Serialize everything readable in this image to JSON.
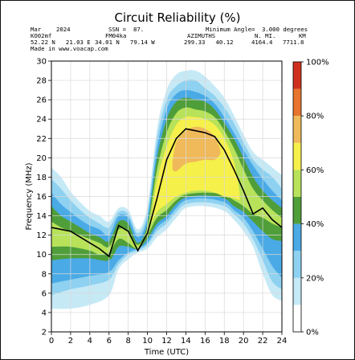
{
  "chart_data": {
    "type": "heatmap",
    "title": "Circuit Reliability (%)",
    "header": {
      "month": "Mar",
      "year": "2024",
      "ssn_label": "SSN =",
      "ssn": "87.",
      "min_angle_label": "Minimum Angle=",
      "min_angle": "3.000 degrees",
      "tx_call": "KO02mf",
      "rx_call": "FM04ka",
      "azimuths_label": "AZIMUTHS",
      "nmi_label": "N. MI.",
      "km_label": "KM",
      "tx_coords": "52.22 N   21.03 E",
      "rx_coords": "34.01 N   79.14 W",
      "azimuths": "299.33   40.12",
      "nmi": "4164.4",
      "km": "7711.8",
      "made_in": "Made in www.voacap.com"
    },
    "xlabel": "Time (UTC)",
    "ylabel": "Frequency (MHz)",
    "xlim": [
      0,
      24
    ],
    "ylim": [
      2,
      30
    ],
    "xticks": [
      0,
      2,
      4,
      6,
      8,
      10,
      12,
      14,
      16,
      18,
      20,
      22,
      24
    ],
    "yticks": [
      2,
      4,
      6,
      8,
      10,
      12,
      14,
      16,
      18,
      20,
      22,
      24,
      26,
      28,
      30
    ],
    "grid": true,
    "colorbar": {
      "ticks": [
        "0%",
        "20%",
        "40%",
        "60%",
        "80%",
        "100%"
      ],
      "levels": [
        {
          "from": 0,
          "to": 10,
          "color": "#ffffff"
        },
        {
          "from": 10,
          "to": 20,
          "color": "#c6e9f6"
        },
        {
          "from": 20,
          "to": 30,
          "color": "#8ed1f0"
        },
        {
          "from": 30,
          "to": 40,
          "color": "#4aaae6"
        },
        {
          "from": 40,
          "to": 50,
          "color": "#4f9e3a"
        },
        {
          "from": 50,
          "to": 60,
          "color": "#b7e25a"
        },
        {
          "from": 60,
          "to": 70,
          "color": "#f6f04a"
        },
        {
          "from": 70,
          "to": 80,
          "color": "#f0b95a"
        },
        {
          "from": 80,
          "to": 90,
          "color": "#e8742e"
        },
        {
          "from": 90,
          "to": 100,
          "color": "#d0301e"
        }
      ]
    },
    "contours": [
      {
        "level": 10,
        "color": "#c6e9f6",
        "low": [
          [
            0,
            4.4
          ],
          [
            2,
            4.4
          ],
          [
            4,
            4.8
          ],
          [
            6,
            5.8
          ],
          [
            7,
            8.5
          ],
          [
            8,
            9.5
          ],
          [
            9,
            10.2
          ],
          [
            10,
            10.6
          ],
          [
            11,
            11.8
          ],
          [
            12,
            12.6
          ],
          [
            13,
            13.8
          ],
          [
            14,
            14.8
          ],
          [
            16,
            15
          ],
          [
            18,
            14.5
          ],
          [
            19,
            13.6
          ],
          [
            20,
            12.4
          ],
          [
            21,
            10.8
          ],
          [
            22,
            8
          ],
          [
            23,
            5.8
          ],
          [
            24,
            5.2
          ]
        ],
        "high": [
          [
            0,
            19
          ],
          [
            1,
            18
          ],
          [
            2,
            16.5
          ],
          [
            3,
            15.4
          ],
          [
            4,
            14.5
          ],
          [
            5,
            14
          ],
          [
            6,
            13.4
          ],
          [
            7,
            14.8
          ],
          [
            8,
            14.6
          ],
          [
            9,
            12.6
          ],
          [
            10,
            15
          ],
          [
            11,
            23
          ],
          [
            12,
            27
          ],
          [
            13,
            28.6
          ],
          [
            14,
            29
          ],
          [
            15,
            29
          ],
          [
            16,
            28.4
          ],
          [
            17,
            27.4
          ],
          [
            18,
            26.2
          ],
          [
            19,
            24.4
          ],
          [
            20,
            22.4
          ],
          [
            21,
            20.6
          ],
          [
            22,
            19.8
          ],
          [
            23,
            19
          ],
          [
            24,
            18.2
          ]
        ]
      },
      {
        "level": 20,
        "color": "#8ed1f0",
        "low": [
          [
            0,
            5.8
          ],
          [
            2,
            6.4
          ],
          [
            4,
            6.8
          ],
          [
            6,
            7.4
          ],
          [
            7,
            9
          ],
          [
            8,
            10
          ],
          [
            9,
            10.4
          ],
          [
            10,
            11
          ],
          [
            11,
            12.4
          ],
          [
            12,
            13.2
          ],
          [
            13,
            14.4
          ],
          [
            14,
            15.2
          ],
          [
            16,
            15.4
          ],
          [
            18,
            15
          ],
          [
            19,
            14.2
          ],
          [
            20,
            13.2
          ],
          [
            21,
            11.6
          ],
          [
            22,
            9.4
          ],
          [
            23,
            7.2
          ],
          [
            24,
            6.4
          ]
        ],
        "high": [
          [
            0,
            17.8
          ],
          [
            1,
            16.8
          ],
          [
            2,
            15.6
          ],
          [
            3,
            14.6
          ],
          [
            4,
            13.8
          ],
          [
            5,
            13.2
          ],
          [
            6,
            12.8
          ],
          [
            7,
            14.4
          ],
          [
            8,
            14.2
          ],
          [
            9,
            12.2
          ],
          [
            10,
            14.4
          ],
          [
            11,
            22
          ],
          [
            12,
            26
          ],
          [
            13,
            27.4
          ],
          [
            14,
            28
          ],
          [
            15,
            28
          ],
          [
            16,
            27.2
          ],
          [
            17,
            26.4
          ],
          [
            18,
            25.2
          ],
          [
            19,
            23.6
          ],
          [
            20,
            21.6
          ],
          [
            21,
            19.8
          ],
          [
            22,
            18.8
          ],
          [
            23,
            18
          ],
          [
            24,
            16.8
          ]
        ]
      },
      {
        "level": 30,
        "color": "#4aaae6",
        "low": [
          [
            0,
            7
          ],
          [
            2,
            7.4
          ],
          [
            4,
            7.8
          ],
          [
            6,
            8.2
          ],
          [
            7,
            9.4
          ],
          [
            8,
            10.2
          ],
          [
            9,
            10.6
          ],
          [
            10,
            11.2
          ],
          [
            11,
            12.8
          ],
          [
            12,
            13.6
          ],
          [
            13,
            14.8
          ],
          [
            14,
            15.6
          ],
          [
            16,
            15.8
          ],
          [
            18,
            15.4
          ],
          [
            19,
            14.6
          ],
          [
            20,
            13.8
          ],
          [
            21,
            12.4
          ],
          [
            22,
            10.6
          ],
          [
            23,
            8.8
          ],
          [
            24,
            7.6
          ]
        ],
        "high": [
          [
            0,
            16.4
          ],
          [
            1,
            15.2
          ],
          [
            2,
            14.4
          ],
          [
            3,
            13.6
          ],
          [
            4,
            13
          ],
          [
            5,
            12.6
          ],
          [
            6,
            12
          ],
          [
            7,
            14
          ],
          [
            8,
            13.8
          ],
          [
            9,
            11.8
          ],
          [
            10,
            13.8
          ],
          [
            11,
            21
          ],
          [
            12,
            25
          ],
          [
            13,
            26.6
          ],
          [
            14,
            27
          ],
          [
            15,
            26.8
          ],
          [
            16,
            26.4
          ],
          [
            17,
            25.6
          ],
          [
            18,
            24.2
          ],
          [
            19,
            22.6
          ],
          [
            20,
            20.8
          ],
          [
            21,
            19.2
          ],
          [
            22,
            17.8
          ],
          [
            23,
            16.6
          ],
          [
            24,
            15.6
          ]
        ]
      },
      {
        "level": 40,
        "color": "#4f9e3a",
        "low": [
          [
            0,
            9.4
          ],
          [
            2,
            9.6
          ],
          [
            4,
            9.6
          ],
          [
            6,
            9.4
          ],
          [
            7,
            10.8
          ],
          [
            8,
            10.8
          ],
          [
            9,
            10.6
          ],
          [
            10,
            11.6
          ],
          [
            11,
            13.2
          ],
          [
            12,
            14
          ],
          [
            13,
            15.2
          ],
          [
            14,
            15.9
          ],
          [
            16,
            16.1
          ],
          [
            18,
            15.8
          ],
          [
            19,
            15
          ],
          [
            20,
            14.4
          ],
          [
            21,
            13.4
          ],
          [
            22,
            12.4
          ],
          [
            23,
            11.6
          ],
          [
            24,
            11.4
          ]
        ],
        "high": [
          [
            0,
            15
          ],
          [
            1,
            14
          ],
          [
            2,
            13.4
          ],
          [
            3,
            12.8
          ],
          [
            4,
            12.2
          ],
          [
            5,
            11.8
          ],
          [
            6,
            11.4
          ],
          [
            7,
            13.4
          ],
          [
            8,
            13.2
          ],
          [
            9,
            11.2
          ],
          [
            10,
            13.2
          ],
          [
            11,
            20
          ],
          [
            12,
            24
          ],
          [
            13,
            25.8
          ],
          [
            14,
            26.2
          ],
          [
            15,
            26
          ],
          [
            16,
            25.8
          ],
          [
            17,
            25
          ],
          [
            18,
            23.6
          ],
          [
            19,
            22
          ],
          [
            20,
            20
          ],
          [
            21,
            18
          ],
          [
            22,
            16.6
          ],
          [
            23,
            15.6
          ],
          [
            24,
            14.8
          ]
        ]
      },
      {
        "level": 50,
        "color": "#b7e25a",
        "low": [
          [
            0,
            10.8
          ],
          [
            2,
            10.8
          ],
          [
            4,
            10.4
          ],
          [
            5,
            10
          ],
          [
            6,
            10.2
          ],
          [
            7,
            11.6
          ],
          [
            8,
            11.2
          ],
          [
            9,
            10.6
          ],
          [
            10,
            12
          ],
          [
            11,
            13.8
          ],
          [
            12,
            14.6
          ],
          [
            13,
            15.6
          ],
          [
            14,
            16.2
          ],
          [
            16,
            16.4
          ],
          [
            18,
            16.2
          ],
          [
            19,
            15.6
          ],
          [
            20,
            15
          ],
          [
            21,
            14.2
          ],
          [
            22,
            13.8
          ],
          [
            23,
            13.2
          ],
          [
            24,
            12.8
          ]
        ],
        "high": [
          [
            0,
            13.4
          ],
          [
            1,
            12.8
          ],
          [
            2,
            12.4
          ],
          [
            3,
            12
          ],
          [
            4,
            11.6
          ],
          [
            5,
            11.2
          ],
          [
            6,
            10.8
          ],
          [
            7,
            12.6
          ],
          [
            8,
            12.4
          ],
          [
            9,
            11
          ],
          [
            10,
            12.8
          ],
          [
            11,
            18.8
          ],
          [
            12,
            22.6
          ],
          [
            13,
            24.6
          ],
          [
            14,
            25.2
          ],
          [
            15,
            25
          ],
          [
            16,
            24.8
          ],
          [
            17,
            24.2
          ],
          [
            18,
            22.8
          ],
          [
            19,
            21
          ],
          [
            20,
            18.8
          ],
          [
            21,
            16.8
          ],
          [
            22,
            15.6
          ],
          [
            23,
            14.6
          ],
          [
            24,
            13.8
          ]
        ]
      },
      {
        "level": 60,
        "color": "#f6f04a",
        "low": [
          [
            10.4,
            13.2
          ],
          [
            11,
            14.4
          ],
          [
            12,
            15.2
          ],
          [
            13,
            16
          ],
          [
            14,
            16.4
          ],
          [
            15,
            16.6
          ],
          [
            16,
            16.6
          ],
          [
            17,
            16.4
          ],
          [
            18,
            16
          ],
          [
            19,
            15.8
          ],
          [
            19.6,
            15.6
          ]
        ],
        "high": [
          [
            10.4,
            13.8
          ],
          [
            11,
            17.6
          ],
          [
            12,
            21.2
          ],
          [
            13,
            23.4
          ],
          [
            14,
            24.2
          ],
          [
            15,
            24.2
          ],
          [
            16,
            24
          ],
          [
            17,
            23.4
          ],
          [
            18,
            22
          ],
          [
            19,
            19.6
          ],
          [
            19.6,
            16.4
          ]
        ]
      },
      {
        "level": 70,
        "color": "#f0b95a",
        "low": [
          [
            12.6,
            18.8
          ],
          [
            13,
            18.6
          ],
          [
            14,
            19.4
          ],
          [
            15,
            19.6
          ],
          [
            16,
            19.8
          ],
          [
            17,
            19.8
          ],
          [
            17.6,
            20.4
          ]
        ],
        "high": [
          [
            12.6,
            19.6
          ],
          [
            13,
            21.6
          ],
          [
            14,
            22.8
          ],
          [
            15,
            23.2
          ],
          [
            16,
            23
          ],
          [
            17,
            22.2
          ],
          [
            17.6,
            20.8
          ]
        ]
      }
    ],
    "mufday_line": {
      "x": [
        0,
        2,
        4,
        5,
        6,
        7,
        8,
        9,
        10,
        11,
        12,
        13,
        14,
        15,
        16,
        17,
        18,
        19,
        20,
        21,
        22,
        23,
        24
      ],
      "y": [
        12.8,
        12.4,
        11.2,
        10.6,
        9.8,
        13,
        12.4,
        10.4,
        12.2,
        15.8,
        19.8,
        22,
        23,
        22.8,
        22.6,
        22.2,
        20.8,
        18.8,
        16.6,
        14.2,
        14.8,
        13.6,
        12.8
      ],
      "color": "#000000"
    }
  }
}
